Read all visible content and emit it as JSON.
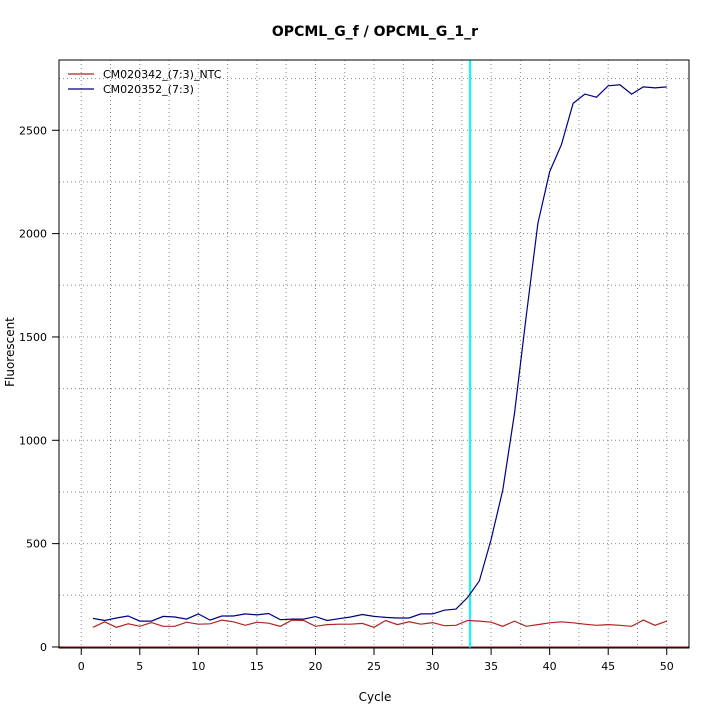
{
  "chart_data": {
    "type": "line",
    "title": "OPCML_G_f / OPCML_G_1_r",
    "xlabel": "Cycle",
    "ylabel": "Fluorescent",
    "xlim": [
      -1.9,
      51.9
    ],
    "ylim": [
      -5,
      2840
    ],
    "x_ticks": [
      0,
      5,
      10,
      15,
      20,
      25,
      30,
      35,
      40,
      45,
      50
    ],
    "y_ticks": [
      0,
      500,
      1000,
      1500,
      2000,
      2500
    ],
    "x_gridlines": [
      0,
      2.5,
      5,
      7.5,
      10,
      12.5,
      15,
      17.5,
      20,
      22.5,
      25,
      27.5,
      30,
      32.5,
      35,
      37.5,
      40,
      42.5,
      45,
      47.5,
      50
    ],
    "y_gridlines": [
      0,
      250,
      500,
      750,
      1000,
      1250,
      1500,
      1750,
      2000,
      2250,
      2500,
      2750
    ],
    "grid": true,
    "legend_position": "top-left",
    "threshold_cycle": 33.2,
    "baseline_y": 0,
    "colors": {
      "threshold": "#00ffff",
      "baseline": "#8b0000",
      "grid": "#888888"
    },
    "x": [
      1,
      2,
      3,
      4,
      5,
      6,
      7,
      8,
      9,
      10,
      11,
      12,
      13,
      14,
      15,
      16,
      17,
      18,
      19,
      20,
      21,
      22,
      23,
      24,
      25,
      26,
      27,
      28,
      29,
      30,
      31,
      32,
      33,
      34,
      35,
      36,
      37,
      38,
      39,
      40,
      41,
      42,
      43,
      44,
      45,
      46,
      47,
      48,
      49,
      50
    ],
    "series": [
      {
        "name": "CM020342_(7:3)_NTC",
        "color": "#b22222",
        "values": [
          95,
          122,
          95,
          112,
          100,
          118,
          100,
          100,
          120,
          110,
          112,
          130,
          122,
          105,
          120,
          115,
          100,
          130,
          128,
          100,
          108,
          110,
          110,
          114,
          95,
          128,
          108,
          122,
          110,
          118,
          103,
          105,
          128,
          125,
          120,
          100,
          125,
          100,
          108,
          117,
          122,
          117,
          110,
          105,
          108,
          105,
          100,
          130,
          105,
          125
        ]
      },
      {
        "name": "CM020352_(7:3)",
        "color": "#000080",
        "values": [
          138,
          128,
          140,
          150,
          125,
          125,
          148,
          145,
          135,
          160,
          130,
          150,
          150,
          160,
          155,
          162,
          132,
          135,
          135,
          147,
          128,
          137,
          145,
          157,
          148,
          143,
          140,
          140,
          160,
          160,
          178,
          183,
          240,
          320,
          520,
          760,
          1130,
          1600,
          2050,
          2300,
          2430,
          2630,
          2675,
          2660,
          2715,
          2720,
          2675,
          2710,
          2705,
          2710
        ]
      }
    ]
  }
}
